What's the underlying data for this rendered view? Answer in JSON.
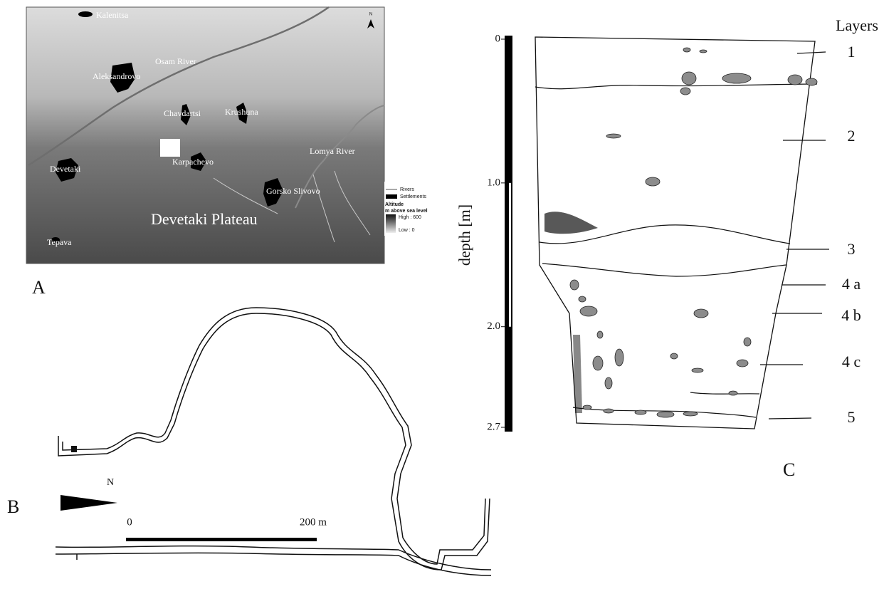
{
  "panel_a": {
    "label": "A",
    "north": "N",
    "places": [
      "Kalenitsa",
      "Aleksandrovo",
      "Chavdartsi",
      "Krushuna",
      "Devetaki",
      "Karpachevo",
      "Gorsko Slivovo",
      "Tepava"
    ],
    "rivers": [
      "Osam River",
      "Lomya River"
    ],
    "region": "Devetaki Plateau",
    "legend": {
      "rivers": "Rivers",
      "settlements": "Settlements",
      "altitude": "Altitude",
      "unit": "m above sea level",
      "high": "High : 600",
      "low": "Low : 0"
    }
  },
  "panel_b": {
    "label": "B",
    "north": "N",
    "scale_start": "0",
    "scale_end": "200 m"
  },
  "panel_c": {
    "label": "C",
    "axis_title": "depth [m]",
    "ylim": [
      0,
      2.7
    ],
    "yticks": [
      0,
      {
        "value": 1,
        "label": "1.0"
      },
      {
        "value": 2,
        "label": "2.0"
      },
      2.7
    ],
    "layers_title": "Layers",
    "layers": [
      "1",
      "2",
      "3",
      "4 a",
      "4 b",
      "4 c",
      "5"
    ]
  }
}
